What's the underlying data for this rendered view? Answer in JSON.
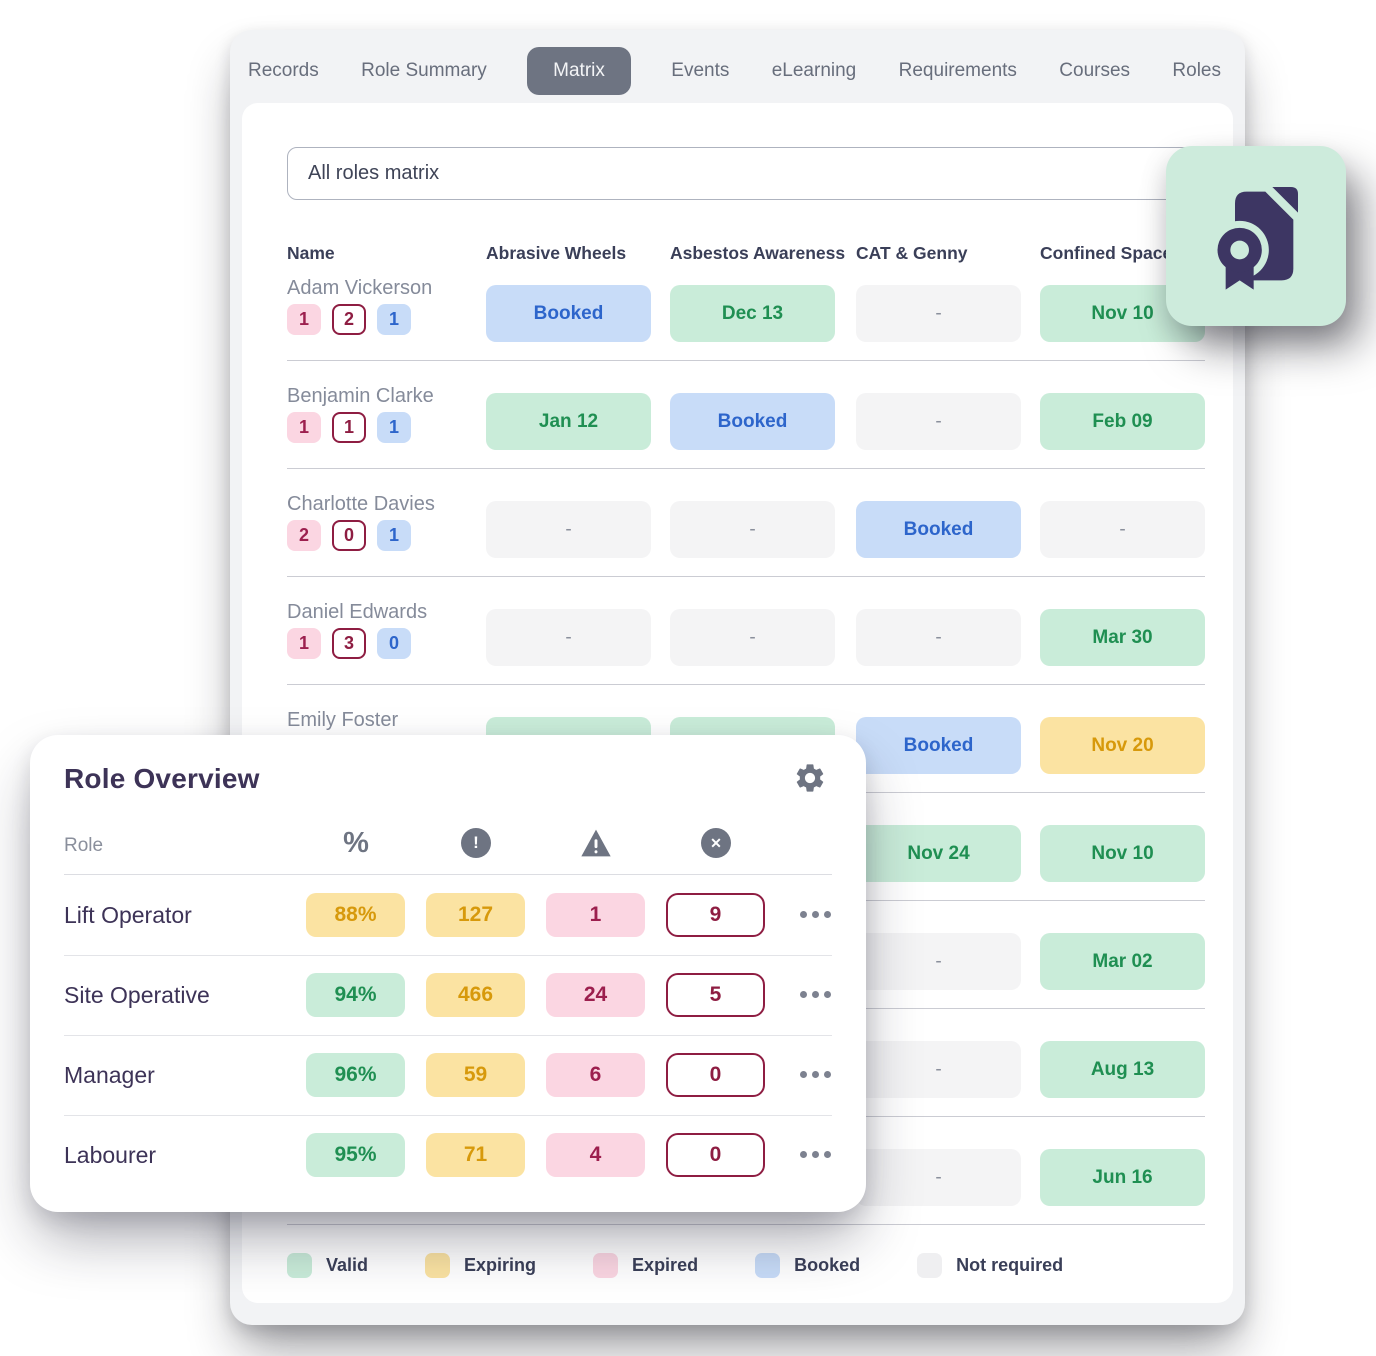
{
  "colors": {
    "valid_bg": "#c9ecd9",
    "valid_text": "#1f8f52",
    "booked_bg": "#c8dcf8",
    "booked_text": "#2d65cb",
    "expiring_bg": "#fbe3a2",
    "expiring_text": "#d7990b",
    "expired_bg": "#fbd6e2",
    "expired_text": "#9c1f4e",
    "none_bg": "#f4f4f5",
    "none_text": "#8a8f9c",
    "outline_border": "#8e1d42",
    "accent_dark": "#3d3357",
    "tab_pill": "#6e7482",
    "mint_card": "#cdebdc",
    "icon_dark": "#3d3663"
  },
  "tabs": [
    {
      "label": "Records",
      "active": false
    },
    {
      "label": "Role Summary",
      "active": false
    },
    {
      "label": "Matrix",
      "active": true
    },
    {
      "label": "Events",
      "active": false
    },
    {
      "label": "eLearning",
      "active": false
    },
    {
      "label": "Requirements",
      "active": false
    },
    {
      "label": "Courses",
      "active": false
    },
    {
      "label": "Roles",
      "active": false
    }
  ],
  "filter": {
    "value": "All roles matrix"
  },
  "matrix": {
    "columns": [
      "Name",
      "Abrasive Wheels",
      "Asbestos Awareness",
      "CAT & Genny",
      "Confined Space"
    ],
    "rows": [
      {
        "name": "Adam Vickerson",
        "badges": [
          {
            "type": "expired",
            "value": "1"
          },
          {
            "type": "outline",
            "value": "2"
          },
          {
            "type": "booked",
            "value": "1"
          }
        ],
        "cells": [
          {
            "status": "booked",
            "label": "Booked"
          },
          {
            "status": "valid",
            "label": "Dec 13"
          },
          {
            "status": "none",
            "label": "-"
          },
          {
            "status": "valid",
            "label": "Nov 10"
          }
        ]
      },
      {
        "name": "Benjamin Clarke",
        "badges": [
          {
            "type": "expired",
            "value": "1"
          },
          {
            "type": "outline",
            "value": "1"
          },
          {
            "type": "booked",
            "value": "1"
          }
        ],
        "cells": [
          {
            "status": "valid",
            "label": "Jan 12"
          },
          {
            "status": "booked",
            "label": "Booked"
          },
          {
            "status": "none",
            "label": "-"
          },
          {
            "status": "valid",
            "label": "Feb 09"
          }
        ]
      },
      {
        "name": "Charlotte Davies",
        "badges": [
          {
            "type": "expired",
            "value": "2"
          },
          {
            "type": "outline",
            "value": "0"
          },
          {
            "type": "booked",
            "value": "1"
          }
        ],
        "cells": [
          {
            "status": "none",
            "label": "-"
          },
          {
            "status": "none",
            "label": "-"
          },
          {
            "status": "booked",
            "label": "Booked"
          },
          {
            "status": "none",
            "label": "-"
          }
        ]
      },
      {
        "name": "Daniel Edwards",
        "badges": [
          {
            "type": "expired",
            "value": "1"
          },
          {
            "type": "outline",
            "value": "3"
          },
          {
            "type": "booked",
            "value": "0"
          }
        ],
        "cells": [
          {
            "status": "none",
            "label": "-"
          },
          {
            "status": "none",
            "label": "-"
          },
          {
            "status": "none",
            "label": "-"
          },
          {
            "status": "valid",
            "label": "Mar 30"
          }
        ]
      },
      {
        "name": "Emily Foster",
        "badges": null,
        "cells": [
          {
            "status": "valid",
            "label": ""
          },
          {
            "status": "valid",
            "label": ""
          },
          {
            "status": "booked",
            "label": "Booked"
          },
          {
            "status": "expiring",
            "label": "Nov 20"
          }
        ]
      },
      {
        "name": "",
        "badges": null,
        "cells": [
          {
            "status": "hidden",
            "label": ""
          },
          {
            "status": "hidden",
            "label": ""
          },
          {
            "status": "valid",
            "label": "Nov 24"
          },
          {
            "status": "valid",
            "label": "Nov 10"
          }
        ]
      },
      {
        "name": "",
        "badges": null,
        "cells": [
          {
            "status": "hidden",
            "label": ""
          },
          {
            "status": "hidden",
            "label": ""
          },
          {
            "status": "none",
            "label": "-"
          },
          {
            "status": "valid",
            "label": "Mar 02"
          }
        ]
      },
      {
        "name": "",
        "badges": null,
        "cells": [
          {
            "status": "hidden",
            "label": ""
          },
          {
            "status": "hidden",
            "label": ""
          },
          {
            "status": "none",
            "label": "-"
          },
          {
            "status": "valid",
            "label": "Aug 13"
          }
        ]
      },
      {
        "name": "",
        "badges": null,
        "cells": [
          {
            "status": "hidden",
            "label": ""
          },
          {
            "status": "hidden",
            "label": ""
          },
          {
            "status": "none",
            "label": "-"
          },
          {
            "status": "valid",
            "label": "Jun 16"
          }
        ]
      }
    ],
    "legend": [
      {
        "label": "Valid",
        "status": "valid"
      },
      {
        "label": "Expiring",
        "status": "expiring"
      },
      {
        "label": "Expired",
        "status": "expired"
      },
      {
        "label": "Booked",
        "status": "booked"
      },
      {
        "label": "Not required",
        "status": "none"
      }
    ]
  },
  "overlay": {
    "title": "Role Overview",
    "role_column_label": "Role",
    "column_icons": [
      "percent-icon",
      "exclamation-circle-icon",
      "warning-triangle-icon",
      "x-circle-icon"
    ],
    "rows": [
      {
        "role": "Lift Operator",
        "cells": [
          {
            "status": "expiring",
            "label": "88%"
          },
          {
            "status": "expiring",
            "label": "127"
          },
          {
            "status": "expired",
            "label": "1"
          },
          {
            "status": "outline",
            "label": "9"
          }
        ]
      },
      {
        "role": "Site Operative",
        "cells": [
          {
            "status": "valid",
            "label": "94%"
          },
          {
            "status": "expiring",
            "label": "466"
          },
          {
            "status": "expired",
            "label": "24"
          },
          {
            "status": "outline",
            "label": "5"
          }
        ]
      },
      {
        "role": "Manager",
        "cells": [
          {
            "status": "valid",
            "label": "96%"
          },
          {
            "status": "expiring",
            "label": "59"
          },
          {
            "status": "expired",
            "label": "6"
          },
          {
            "status": "outline",
            "label": "0"
          }
        ]
      },
      {
        "role": "Labourer",
        "cells": [
          {
            "status": "valid",
            "label": "95%"
          },
          {
            "status": "expiring",
            "label": "71"
          },
          {
            "status": "expired",
            "label": "4"
          },
          {
            "status": "outline",
            "label": "0"
          }
        ]
      }
    ]
  }
}
